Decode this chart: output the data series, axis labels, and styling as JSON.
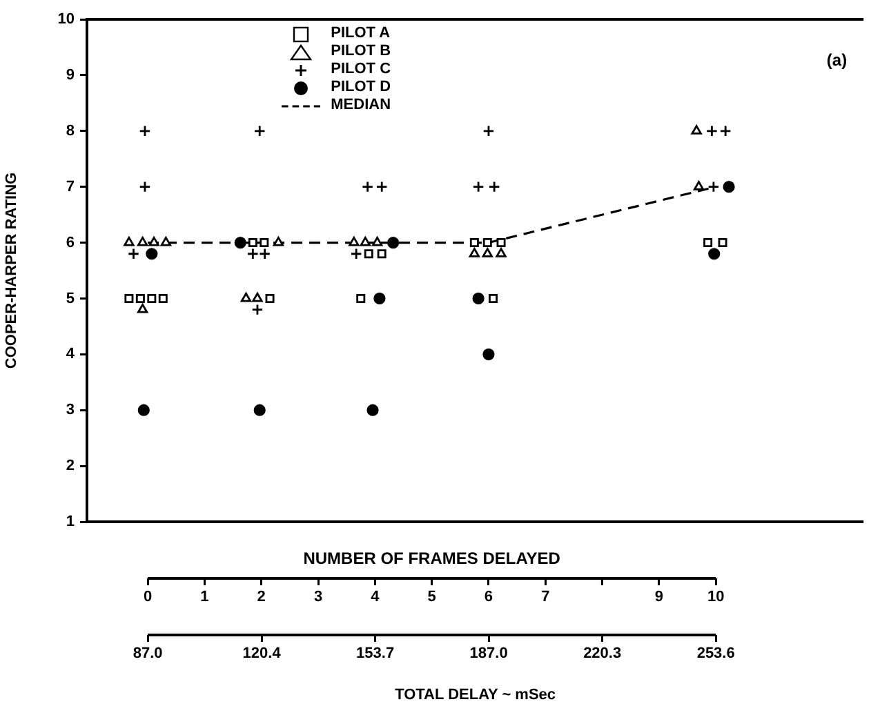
{
  "chart_data": {
    "type": "scatter",
    "xlabel": "NUMBER OF FRAMES DELAYED",
    "ylabel": "COOPER-HARPER RATING",
    "x2label": "TOTAL DELAY ~ mSec",
    "xlim": [
      -1.07,
      12.6
    ],
    "xticks": [
      0,
      1,
      2,
      3,
      4,
      5,
      6,
      7,
      {
        "value": 8,
        "label": null
      },
      9,
      10
    ],
    "x2lim": [
      69.17,
      296.92
    ],
    "x2ticks": [
      {
        "value": 87,
        "label": "87.0"
      },
      120.4,
      153.7,
      {
        "value": 187,
        "label": "187.0"
      },
      220.3,
      253.6
    ],
    "ylim": [
      1,
      10
    ],
    "yticks": [
      1,
      2,
      3,
      4,
      5,
      6,
      7,
      8,
      9,
      10
    ],
    "grid": false,
    "legend": "top",
    "annotations": [
      "(a)"
    ],
    "series": [
      {
        "name": "PILOT A",
        "type": "scatter",
        "marker": "square",
        "color": "#000000",
        "x": [
          -0.33,
          -0.13,
          0.07,
          0.27,
          1.85,
          2.05,
          2.15,
          3.89,
          4.12,
          3.75,
          5.75,
          5.98,
          6.22,
          6.08,
          9.86,
          10.12
        ],
        "values": [
          5,
          5,
          5,
          5,
          6,
          6,
          5,
          5.8,
          5.8,
          5,
          6,
          6,
          6,
          5,
          6,
          6
        ]
      },
      {
        "name": "PILOT B",
        "type": "scatter",
        "marker": "triangle",
        "color": "#000000",
        "x": [
          -0.33,
          -0.09,
          0.11,
          0.32,
          -0.09,
          2.3,
          1.73,
          1.93,
          3.63,
          3.83,
          4.04,
          5.75,
          5.98,
          6.22,
          9.66,
          9.7
        ],
        "values": [
          6,
          6,
          6,
          6,
          4.8,
          6,
          5,
          5,
          6,
          6,
          6,
          5.8,
          5.8,
          5.8,
          8,
          7
        ]
      },
      {
        "name": "PILOT C",
        "type": "scatter",
        "marker": "cross",
        "color": "#000000",
        "x": [
          -0.05,
          -0.05,
          -0.25,
          1.97,
          1.85,
          2.06,
          1.93,
          3.87,
          4.12,
          3.67,
          6,
          5.82,
          6.1,
          9.93,
          10.17,
          9.96
        ],
        "values": [
          8,
          7,
          5.8,
          8,
          5.8,
          5.8,
          4.8,
          7,
          7,
          5.8,
          8,
          7,
          7,
          8,
          8,
          7
        ]
      },
      {
        "name": "PILOT D",
        "type": "scatter",
        "marker": "circle",
        "color": "#000000",
        "x": [
          0.07,
          -0.07,
          1.63,
          1.97,
          4.32,
          4.08,
          3.96,
          5.82,
          6,
          10.23,
          9.97
        ],
        "values": [
          5.8,
          3,
          6,
          3,
          6,
          5,
          3,
          5,
          4,
          7,
          5.8
        ]
      },
      {
        "name": "MEDIAN",
        "type": "line",
        "marker": "none",
        "line_style": "dashed",
        "color": "#000000",
        "x": [
          0,
          2,
          4,
          6,
          10
        ],
        "values": [
          6,
          6,
          6,
          6,
          7
        ]
      }
    ]
  }
}
